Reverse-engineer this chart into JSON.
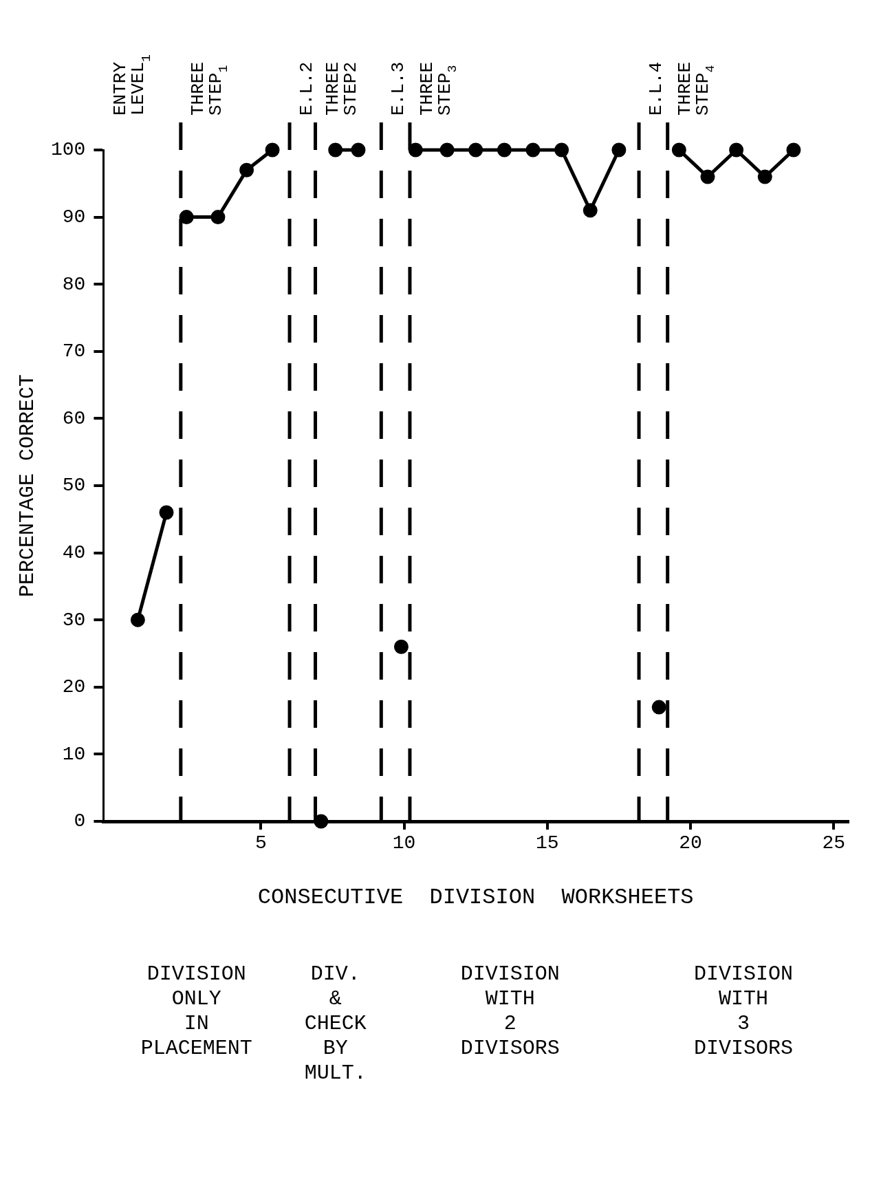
{
  "chart_data": {
    "type": "line",
    "xlabel": "CONSECUTIVE  DIVISION  WORKSHEETS",
    "ylabel": "PERCENTAGE CORRECT",
    "xlim": [
      -0.5,
      25.5
    ],
    "xticks": [
      5,
      10,
      15,
      20,
      25
    ],
    "ylim": [
      0,
      100
    ],
    "yticks": [
      0,
      10,
      20,
      30,
      40,
      50,
      60,
      70,
      80,
      90,
      100
    ],
    "grid": false,
    "legend": false,
    "marker": "circle",
    "line_style": "solid",
    "series": [
      {
        "color": "#000000",
        "x": [
          0.7,
          1.7
        ],
        "values": [
          30,
          46
        ]
      },
      {
        "color": "#000000",
        "x": [
          2.4,
          3.5,
          4.5,
          5.4
        ],
        "values": [
          90,
          90,
          97,
          100
        ]
      },
      {
        "color": "#000000",
        "x": [
          7.1
        ],
        "values": [
          0
        ]
      },
      {
        "color": "#000000",
        "x": [
          7.6,
          8.4
        ],
        "values": [
          100,
          100
        ]
      },
      {
        "color": "#000000",
        "x": [
          9.9
        ],
        "values": [
          26
        ]
      },
      {
        "color": "#000000",
        "x": [
          10.4,
          11.5,
          12.5,
          13.5,
          14.5,
          15.5,
          16.5,
          17.5
        ],
        "values": [
          100,
          100,
          100,
          100,
          100,
          100,
          91,
          100
        ]
      },
      {
        "color": "#000000",
        "x": [
          18.9
        ],
        "values": [
          17
        ]
      },
      {
        "color": "#000000",
        "x": [
          19.6,
          20.6,
          21.6,
          22.6,
          23.6
        ],
        "values": [
          100,
          96,
          100,
          96,
          100
        ]
      }
    ],
    "ref_lines": [
      {
        "axis": "x",
        "value": 2.2,
        "color": "#000000",
        "line_style": "dashed"
      },
      {
        "axis": "x",
        "value": 6.0,
        "color": "#000000",
        "line_style": "dashed"
      },
      {
        "axis": "x",
        "value": 6.9,
        "color": "#000000",
        "line_style": "dashed"
      },
      {
        "axis": "x",
        "value": 9.2,
        "color": "#000000",
        "line_style": "dashed"
      },
      {
        "axis": "x",
        "value": 10.2,
        "color": "#000000",
        "line_style": "dashed"
      },
      {
        "axis": "x",
        "value": 18.2,
        "color": "#000000",
        "line_style": "dashed"
      },
      {
        "axis": "x",
        "value": 19.2,
        "color": "#000000",
        "line_style": "dashed"
      }
    ],
    "annotations": [
      "ENTRY\nLEVEL$_{1}$",
      "THREE\nSTEP$_{1}$",
      "E.L.2",
      "THREE\nSTEP2",
      "E.L.3",
      "THREE\nSTEP$_{3}$",
      "E.L.4",
      "THREE\nSTEP$_{4}$",
      "DIVISION\nONLY\nIN\nPLACEMENT",
      "DIV.\n&\nCHECK\nBY\nMULT.",
      "DIVISION\nWITH\n2\nDIVISORS",
      "DIVISION\nWITH\n3\nDIVISORS"
    ]
  }
}
